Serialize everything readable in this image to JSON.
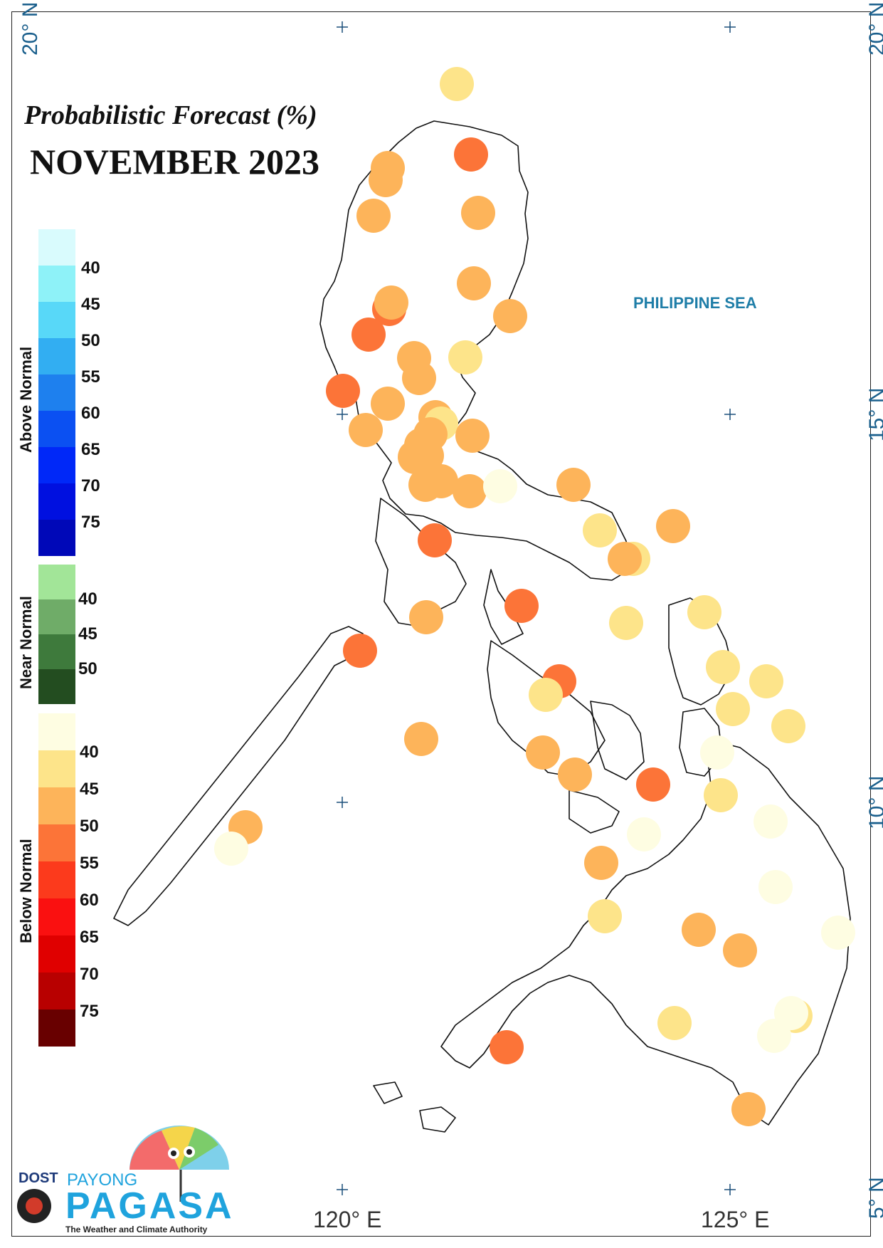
{
  "title": "Probabilistic Forecast (%)",
  "subtitle": "NOVEMBER 2023",
  "sea_label": "PHILIPPINE SEA",
  "latitude_labels_left": [
    "20° N"
  ],
  "latitude_labels_right": [
    "20° N",
    "15° N",
    "10° N",
    "5° N"
  ],
  "longitude_labels": [
    "120° E",
    "125° E"
  ],
  "legend": {
    "above": {
      "title": "Above Normal",
      "ticks": [
        "40",
        "45",
        "50",
        "55",
        "60",
        "65",
        "70",
        "75"
      ],
      "colors": [
        "#d9fbfd",
        "#8ef2f8",
        "#58d8f8",
        "#32aef2",
        "#1e80ee",
        "#0b50f2",
        "#0028f8",
        "#0010e0",
        "#0008b8"
      ]
    },
    "near": {
      "title": "Near Normal",
      "ticks": [
        "40",
        "45",
        "50"
      ],
      "colors": [
        "#a2e598",
        "#6fac68",
        "#3e7a3c",
        "#234d20"
      ]
    },
    "below": {
      "title": "Below Normal",
      "ticks": [
        "40",
        "45",
        "50",
        "55",
        "60",
        "65",
        "70",
        "75"
      ],
      "colors": [
        "#fefde2",
        "#fde48a",
        "#fdb45a",
        "#fc7438",
        "#fc3a1c",
        "#fa1010",
        "#e00000",
        "#b80000",
        "#680000"
      ]
    }
  },
  "logo": {
    "dost": "DOST",
    "payong": "PAYONG",
    "pagasa": "PAGASA",
    "tagline": "The Weather and Climate Authority"
  }
}
